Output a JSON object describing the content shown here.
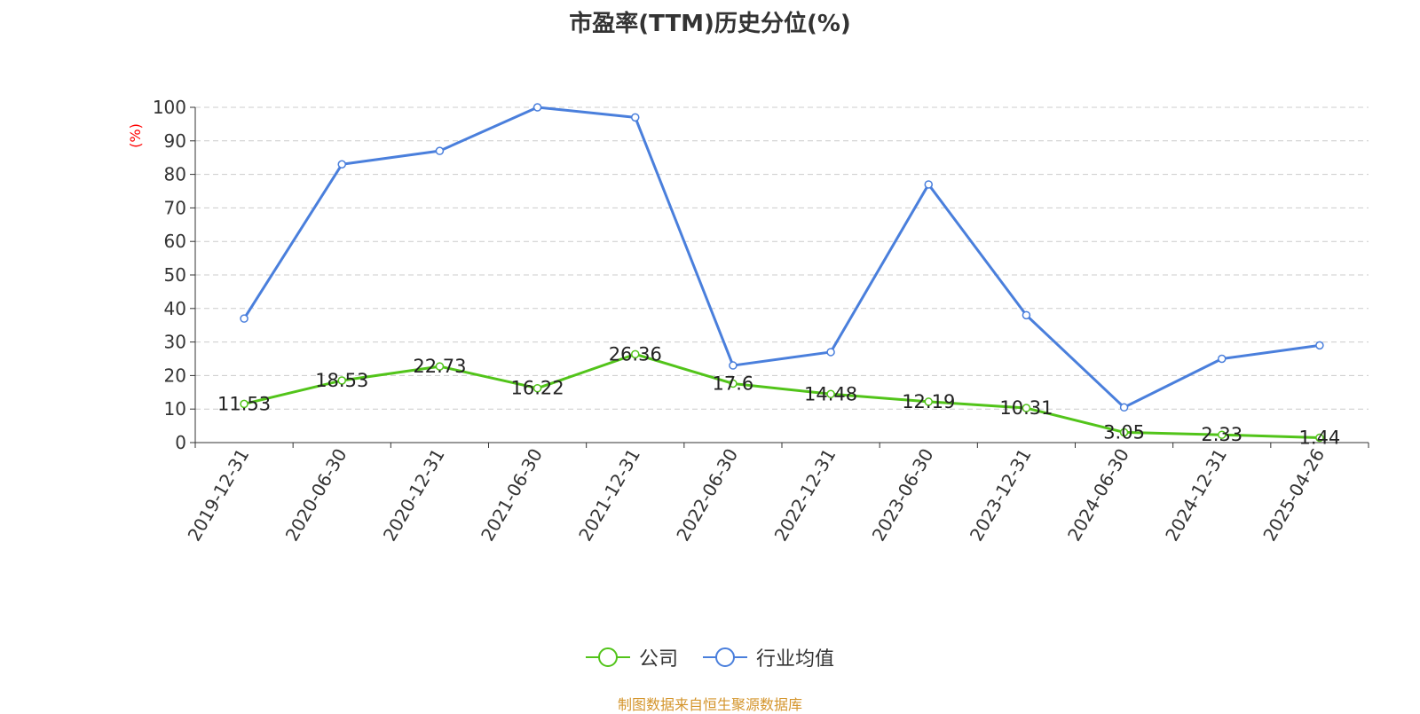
{
  "chart_data": {
    "type": "line",
    "title": "市盈率(TTM)历史分位(%)",
    "ylabel": "(%)",
    "xlabel": "",
    "ylim": [
      0,
      100
    ],
    "yticks": [
      0,
      10,
      20,
      30,
      40,
      50,
      60,
      70,
      80,
      90,
      100
    ],
    "grid": "horizontal dashed",
    "legend_position": "bottom-center",
    "categories": [
      "2019-12-31",
      "2020-06-30",
      "2020-12-31",
      "2021-06-30",
      "2021-12-31",
      "2022-06-30",
      "2022-12-31",
      "2023-06-30",
      "2023-12-31",
      "2024-06-30",
      "2024-12-31",
      "2025-04-26"
    ],
    "series": [
      {
        "name": "公司",
        "color": "#52c41a",
        "values": [
          11.53,
          18.53,
          22.73,
          16.22,
          26.36,
          17.6,
          14.48,
          12.19,
          10.31,
          3.05,
          2.33,
          1.44
        ],
        "labels": [
          "11.53",
          "18.53",
          "22.73",
          "16.22",
          "26.36",
          "17.6",
          "14.48",
          "12.19",
          "10.31",
          "3.05",
          "2.33",
          "1.44"
        ]
      },
      {
        "name": "行业均值",
        "color": "#4a7fdc",
        "values": [
          37,
          83,
          87,
          100,
          97,
          23,
          27,
          77,
          38,
          10.5,
          25,
          29
        ]
      }
    ],
    "source": "制图数据来自恒生聚源数据库"
  }
}
